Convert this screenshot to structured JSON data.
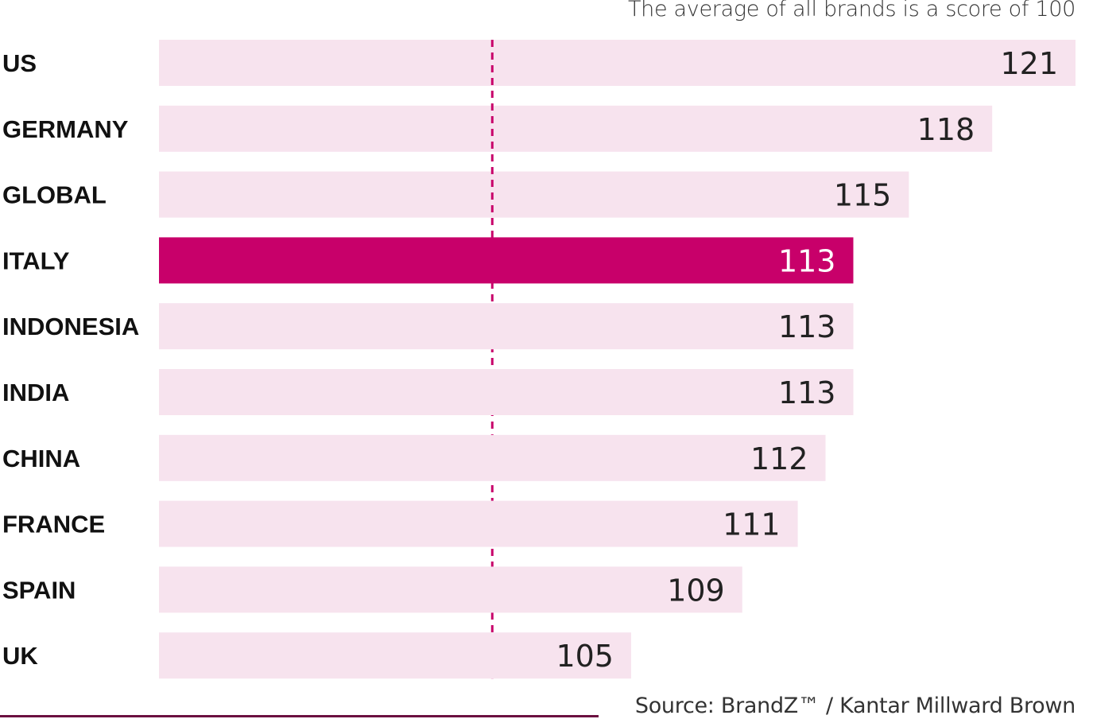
{
  "note": "The average of all brands is a score of 100",
  "source": "Source: BrandZ™ / Kantar Millward Brown",
  "colors": {
    "bar": "#f7e3ee",
    "highlight": "#c8006a",
    "reference_line": "#c8006a",
    "rule": "#6b1040",
    "label": "#111111",
    "value": "#222222",
    "value_on_highlight": "#ffffff"
  },
  "chart_data": {
    "type": "bar",
    "orientation": "horizontal",
    "categories": [
      "US",
      "GERMANY",
      "GLOBAL",
      "ITALY",
      "INDONESIA",
      "INDIA",
      "CHINA",
      "FRANCE",
      "SPAIN",
      "UK"
    ],
    "values": [
      121,
      118,
      115,
      113,
      113,
      113,
      112,
      111,
      109,
      105
    ],
    "highlight_category": "ITALY",
    "reference_value": 100,
    "reference_style": "dashed",
    "xlim": [
      88,
      121
    ],
    "grid": false,
    "data_labels": true
  }
}
